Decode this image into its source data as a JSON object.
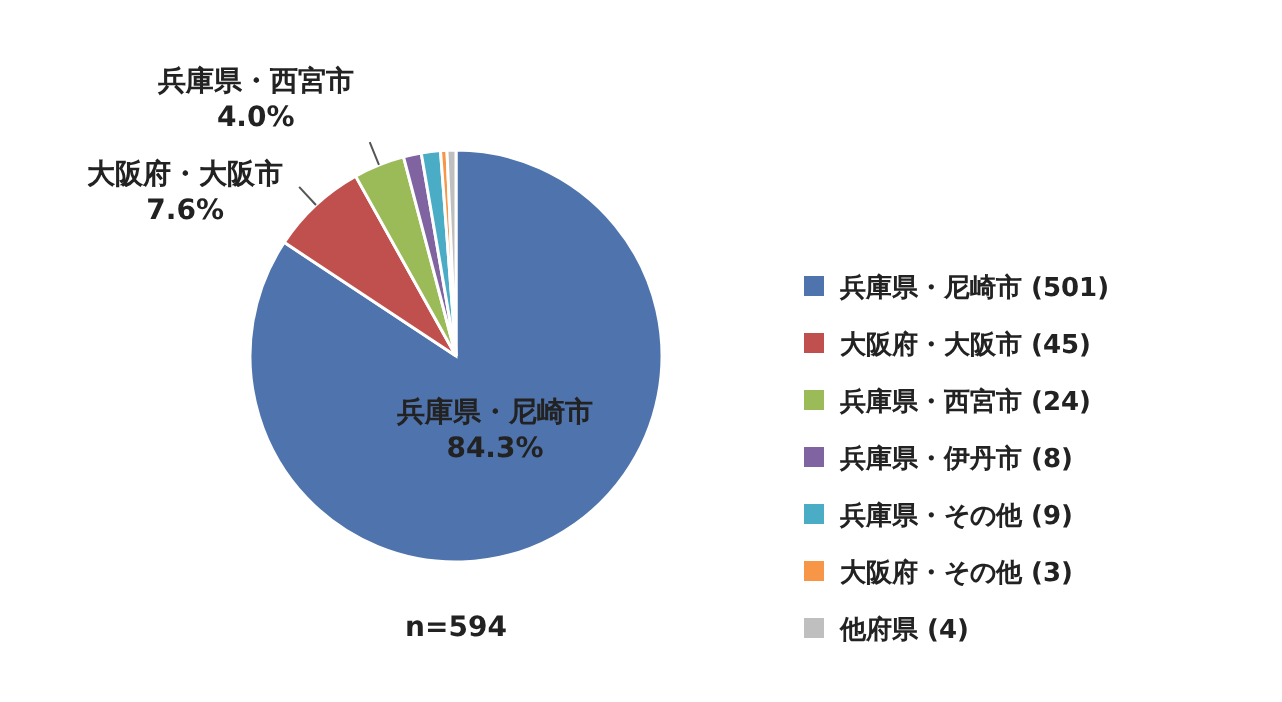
{
  "chart_data": {
    "type": "pie",
    "categories": [
      "兵庫県・尼崎市 (501)",
      "大阪府・大阪市 (45)",
      "兵庫県・西宮市 (24)",
      "兵庫県・伊丹市 (8)",
      "兵庫県・その他 (9)",
      "大阪府・その他 (3)",
      "他府県 (4)"
    ],
    "values": [
      84.3,
      7.6,
      4.0,
      1.4,
      1.5,
      0.5,
      0.7
    ],
    "value_labels": [
      "84.3%",
      "7.6%",
      "4.0%",
      null,
      null,
      null,
      null
    ],
    "colors": [
      "#4f74ad",
      "#c0504d",
      "#9bbb59",
      "#8064a2",
      "#4bacc6",
      "#f79646",
      "#bfbfbf"
    ],
    "legend": "right",
    "annotations": [
      "兵庫県・尼崎市",
      "大阪府・大阪市",
      "兵庫県・西宮市",
      "n=594"
    ]
  }
}
